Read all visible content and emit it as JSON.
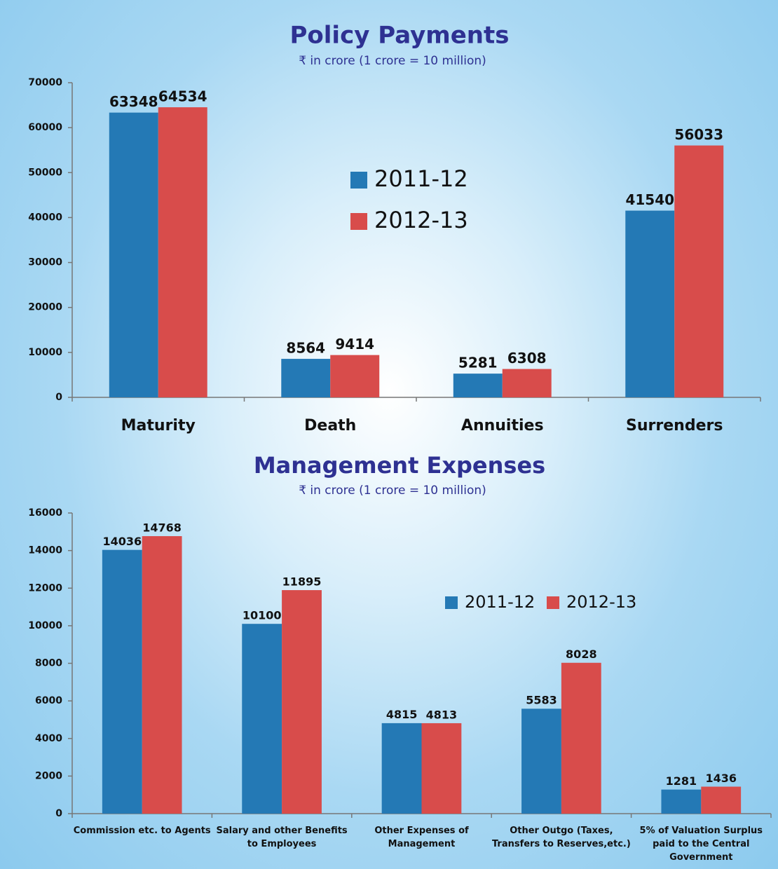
{
  "chart_data": [
    {
      "type": "bar",
      "title": "Policy Payments",
      "subtitle": "₹ in crore (1 crore = 10 million)",
      "categories": [
        "Maturity",
        "Death",
        "Annuities",
        "Surrenders"
      ],
      "series": [
        {
          "name": "2011-12",
          "color": "#2479b5",
          "values": [
            63348,
            8564,
            5281,
            41540
          ]
        },
        {
          "name": "2012-13",
          "color": "#d84c4b",
          "values": [
            64534,
            9414,
            6308,
            56033
          ]
        }
      ],
      "ylim": [
        0,
        70000
      ],
      "yticks": [
        0,
        10000,
        20000,
        30000,
        40000,
        50000,
        60000,
        70000
      ],
      "grid": false,
      "legend": "center"
    },
    {
      "type": "bar",
      "title": "Management Expenses",
      "subtitle": "₹ in crore (1 crore = 10 million)",
      "categories": [
        "Commission etc. to Agents",
        "Salary and other Benefits to Employees",
        "Other Expenses of Management",
        "Other Outgo (Taxes, Transfers to Reserves,etc.)",
        "5% of Valuation Surplus paid to the Central Government"
      ],
      "series": [
        {
          "name": "2011-12",
          "color": "#2479b5",
          "values": [
            14036,
            10100,
            4815,
            5583,
            1281
          ]
        },
        {
          "name": "2012-13",
          "color": "#d84c4b",
          "values": [
            14768,
            11895,
            4813,
            8028,
            1436
          ]
        }
      ],
      "ylim": [
        0,
        16000
      ],
      "yticks": [
        0,
        2000,
        4000,
        6000,
        8000,
        10000,
        12000,
        14000,
        16000
      ],
      "grid": false,
      "legend": "upper right"
    }
  ]
}
